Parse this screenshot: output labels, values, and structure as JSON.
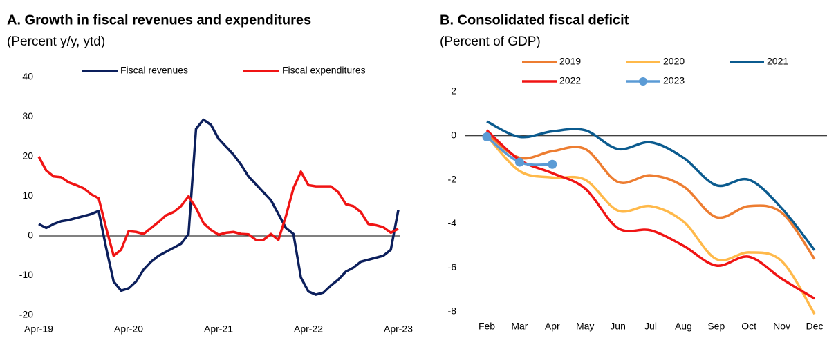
{
  "chart_data": [
    {
      "type": "line",
      "title": "A. Growth in fiscal revenues and expenditures",
      "subtitle": "(Percent y/y, ytd)",
      "categories": [
        "Apr-19",
        null,
        null,
        null,
        null,
        null,
        null,
        null,
        null,
        null,
        null,
        null,
        "Apr-20",
        null,
        null,
        null,
        null,
        null,
        null,
        null,
        null,
        null,
        null,
        null,
        "Apr-21",
        null,
        null,
        null,
        null,
        null,
        null,
        null,
        null,
        null,
        null,
        null,
        "Apr-22",
        null,
        null,
        null,
        null,
        null,
        null,
        null,
        null,
        null,
        null,
        null,
        "Apr-23"
      ],
      "series": [
        {
          "name": "Fiscal revenues",
          "color": "#0c1f5c",
          "values": [
            3,
            2,
            3,
            3.7,
            4,
            4.5,
            5,
            5.5,
            6.3,
            -3,
            -11.5,
            -13.8,
            -13.2,
            -11.5,
            -8.5,
            -6.5,
            -5,
            -4,
            -3,
            -2,
            0.5,
            27,
            29.3,
            28,
            24.5,
            22.5,
            20.5,
            18,
            15,
            13,
            11,
            9,
            5.5,
            2,
            0.5,
            -10.5,
            -14,
            -14.8,
            -14.3,
            -12.5,
            -11,
            -9,
            -8,
            -6.5,
            -6,
            -5.5,
            -5,
            -3.5,
            6.5
          ]
        },
        {
          "name": "Fiscal expenditures",
          "color": "#f01414",
          "values": [
            20,
            16.5,
            15,
            14.8,
            13.5,
            12.8,
            12,
            10.5,
            9.5,
            2,
            -5,
            -3.5,
            1.2,
            1,
            0.5,
            2,
            3.5,
            5.2,
            6,
            7.5,
            10,
            7,
            3.2,
            1.5,
            0.3,
            0.8,
            1,
            0.5,
            0.4,
            -1,
            -1,
            0.5,
            -1,
            5,
            12,
            16.2,
            12.8,
            12.5,
            12.5,
            12.5,
            11,
            8,
            7.5,
            6,
            3,
            2.7,
            2.2,
            0.8,
            1.8
          ]
        }
      ],
      "ylim": [
        -20,
        40
      ],
      "yticks": [
        -20,
        -10,
        0,
        10,
        20,
        30,
        40
      ],
      "legend": "top"
    },
    {
      "type": "line",
      "title": "B. Consolidated fiscal deficit",
      "subtitle": "(Percent of GDP)",
      "categories": [
        "Feb",
        "Mar",
        "Apr",
        "May",
        "Jun",
        "Jul",
        "Aug",
        "Sep",
        "Oct",
        "Nov",
        "Dec"
      ],
      "series": [
        {
          "name": "2019",
          "color": "#ed7d31",
          "values": [
            0.1,
            -1.0,
            -0.7,
            -0.6,
            -2.1,
            -1.8,
            -2.3,
            -3.7,
            -3.2,
            -3.5,
            -5.6
          ]
        },
        {
          "name": "2020",
          "color": "#ffb94a",
          "values": [
            0,
            -1.6,
            -1.9,
            -2.0,
            -3.4,
            -3.2,
            -3.9,
            -5.6,
            -5.3,
            -5.7,
            -8.1
          ]
        },
        {
          "name": "2021",
          "color": "#0b5b8f",
          "values": [
            0.65,
            -0.05,
            0.2,
            0.25,
            -0.6,
            -0.3,
            -1.0,
            -2.25,
            -2.0,
            -3.3,
            -5.2
          ]
        },
        {
          "name": "2022",
          "color": "#f01414",
          "values": [
            0.25,
            -1.1,
            -1.7,
            -2.4,
            -4.2,
            -4.3,
            -5.0,
            -5.9,
            -5.5,
            -6.5,
            -7.4
          ]
        },
        {
          "name": "2023",
          "color": "#5b9bd5",
          "markers": true,
          "values": [
            -0.05,
            -1.2,
            -1.3,
            null,
            null,
            null,
            null,
            null,
            null,
            null,
            null
          ]
        }
      ],
      "ylim": [
        -8,
        2
      ],
      "yticks": [
        -8,
        -6,
        -4,
        -2,
        0,
        2
      ],
      "legend": "top"
    }
  ]
}
